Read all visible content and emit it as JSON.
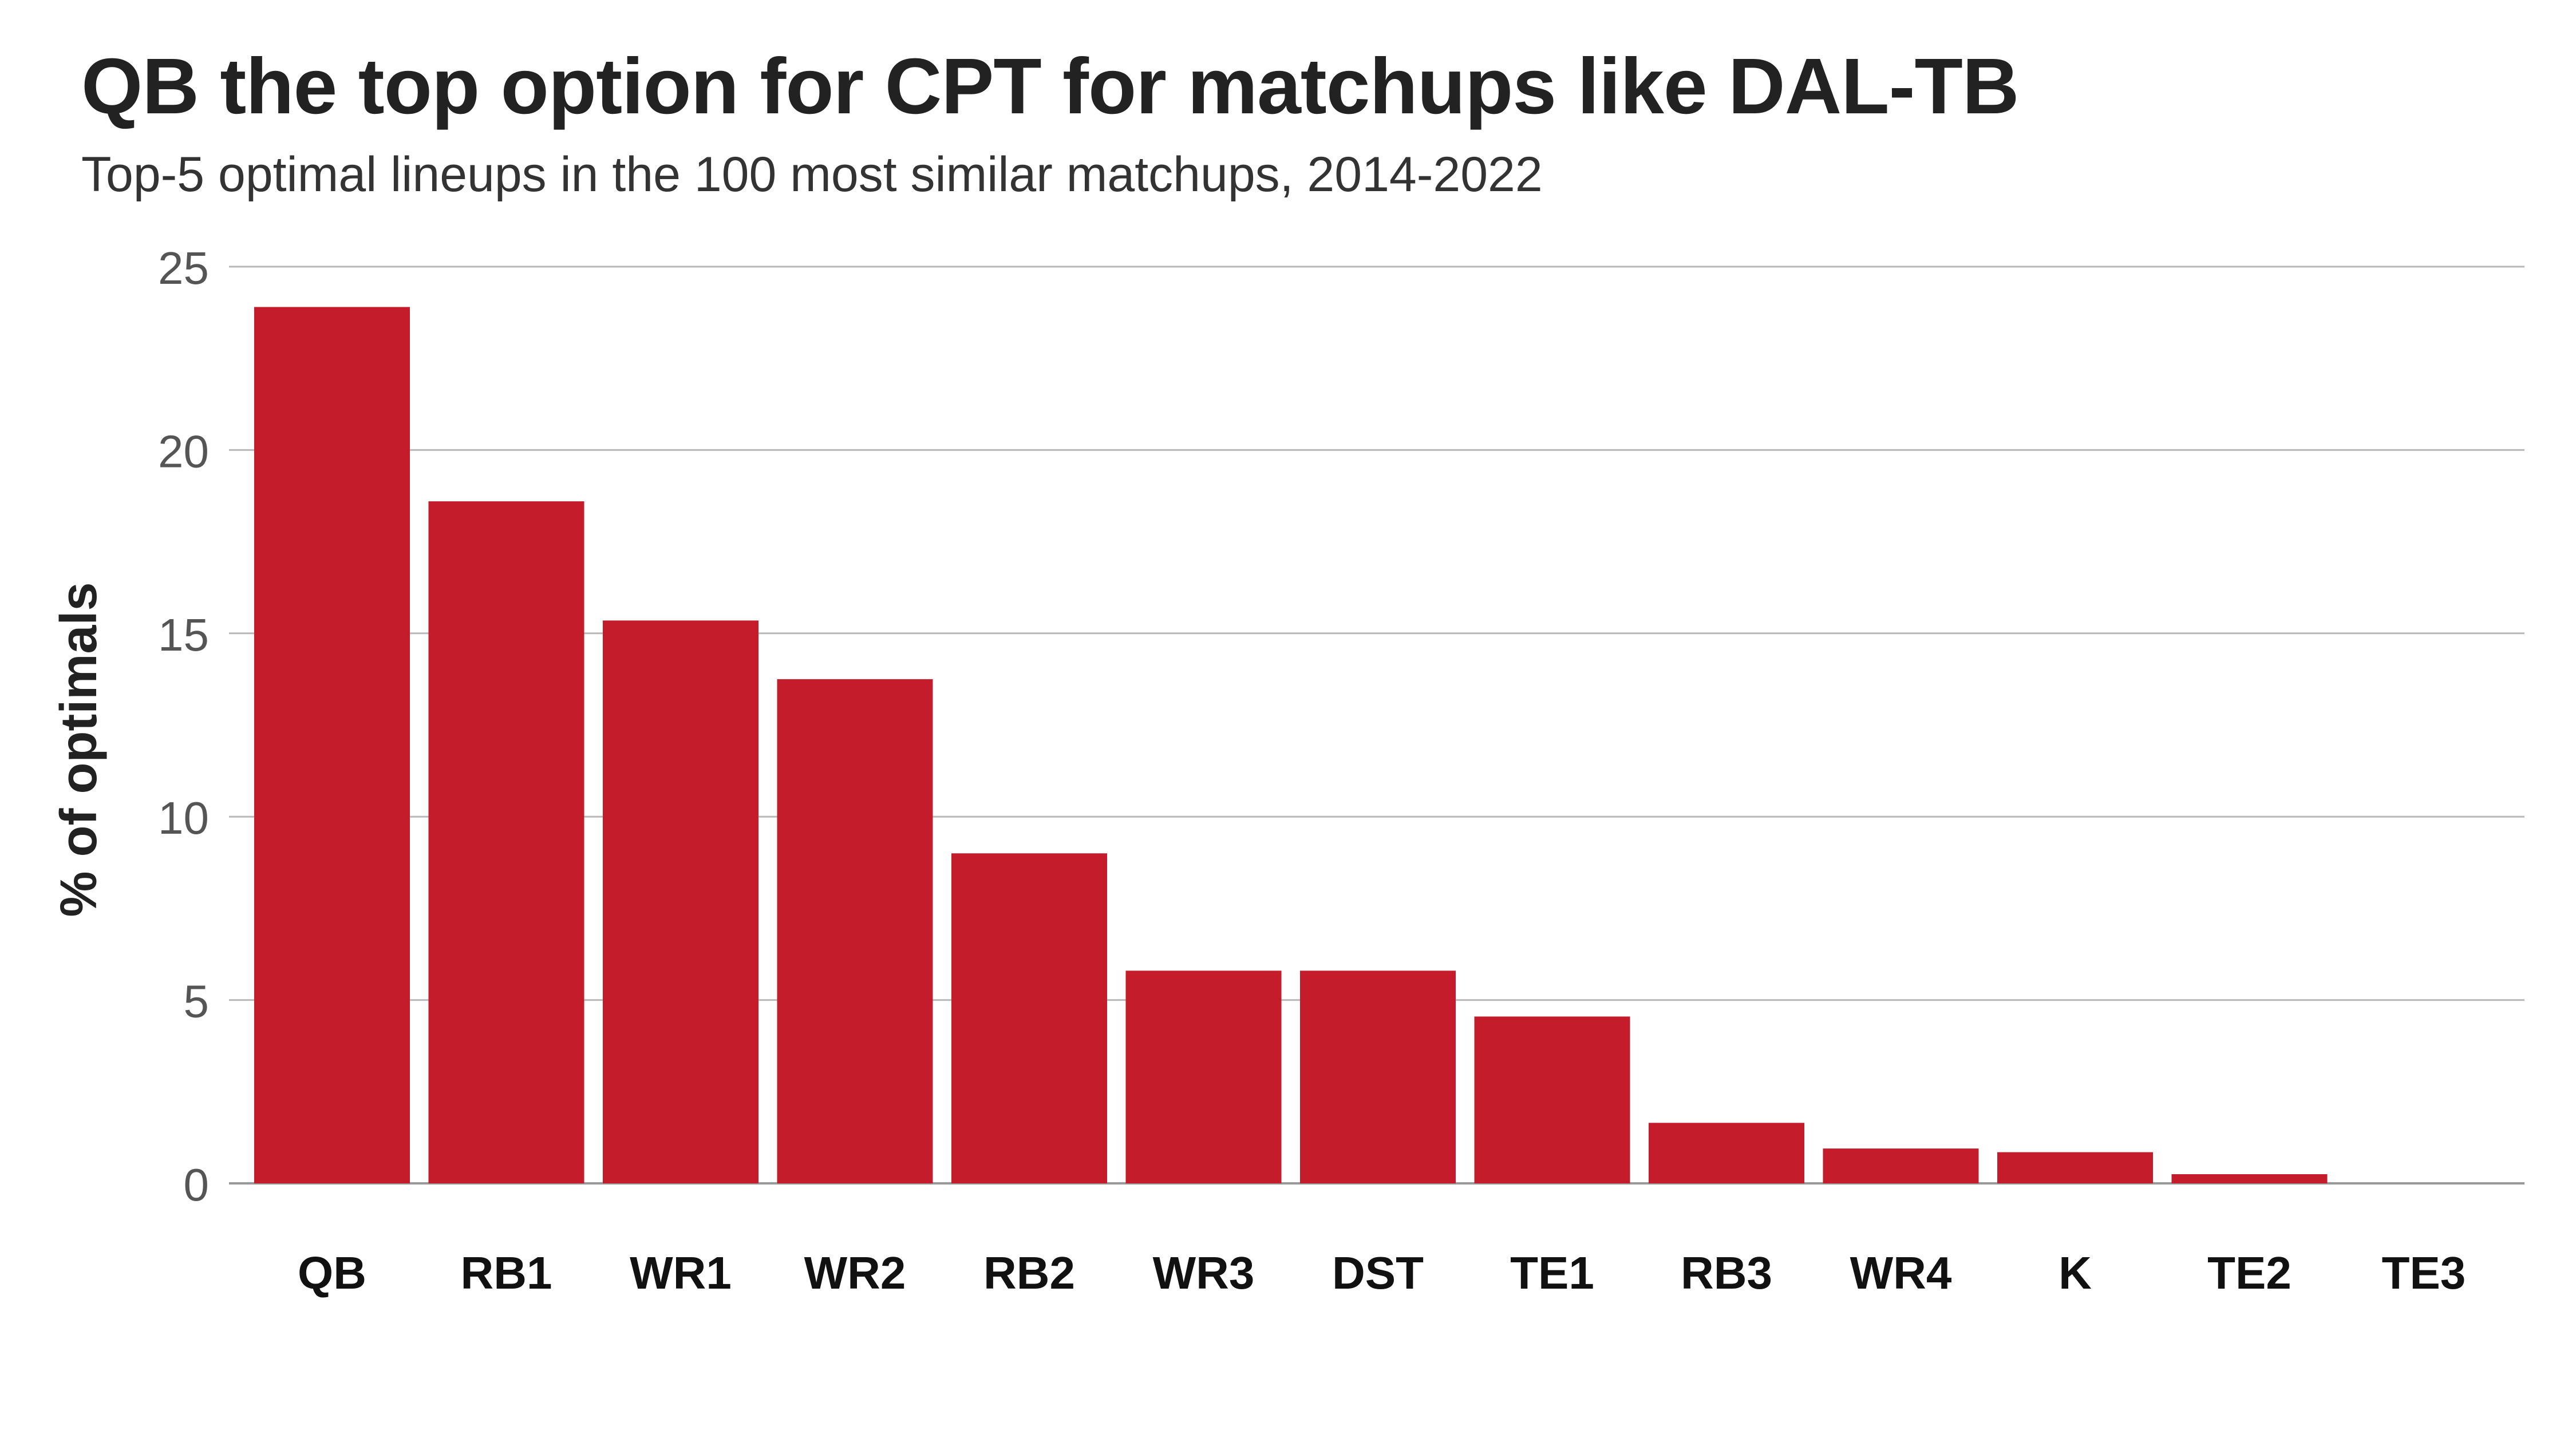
{
  "chart_data": {
    "type": "bar",
    "title": "QB the top option for CPT for matchups like DAL-TB",
    "subtitle": "Top-5 optimal lineups in the 100 most similar matchups, 2014-2022",
    "xlabel": "",
    "ylabel": "% of optimals",
    "ylim": [
      0,
      25
    ],
    "yticks": [
      0,
      5,
      10,
      15,
      20,
      25
    ],
    "categories": [
      "QB",
      "RB1",
      "WR1",
      "WR2",
      "RB2",
      "WR3",
      "DST",
      "TE1",
      "RB3",
      "WR4",
      "K",
      "TE2",
      "TE3"
    ],
    "values": [
      23.9,
      18.6,
      15.35,
      13.75,
      9.0,
      5.8,
      5.8,
      4.55,
      1.65,
      0.95,
      0.85,
      0.25,
      0.0
    ],
    "grid": true,
    "legend": "none",
    "colors": {
      "bar": "#c41c2b",
      "grid": "#b8b8b8",
      "axis": "#999999",
      "tick_label": "#555555",
      "category_label": "#111111",
      "ylabel": "#222222"
    }
  }
}
